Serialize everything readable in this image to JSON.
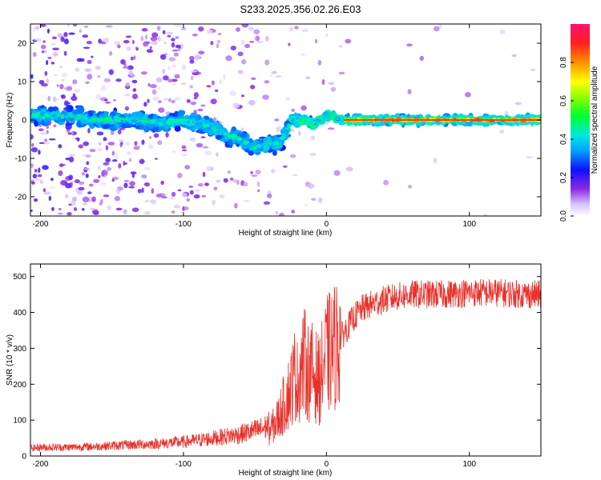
{
  "title": "S233.2025.356.02.26.E03",
  "colors": {
    "snr_line": "#e8312a",
    "spectrum_colormap": [
      "#ffffff",
      "#b080ff",
      "#6a00e0",
      "#2020ff",
      "#00e0ff",
      "#00ff40",
      "#c0ff00",
      "#ff8000",
      "#ff1060"
    ]
  },
  "chart_data": [
    {
      "type": "heatmap",
      "xlabel": "Height of straight line (km)",
      "ylabel": "Frequency (Hz)",
      "xlim": [
        -207,
        150
      ],
      "ylim": [
        -25,
        25
      ],
      "xticks": [
        -200,
        -100,
        0,
        100
      ],
      "xtick_labels": [
        "-200",
        "-100",
        "0",
        "100"
      ],
      "yticks": [
        20,
        10,
        0,
        -10,
        -20
      ],
      "ytick_labels": [
        "20",
        "10",
        "0",
        "-10",
        "-20"
      ],
      "colorbar": {
        "label": "Normalized spectral amplitude",
        "range": [
          0,
          1
        ],
        "ticks": [
          0.0,
          0.2,
          0.4,
          0.6,
          0.8
        ],
        "tick_labels": [
          "0.0",
          "0.2",
          "0.4",
          "0.6",
          "0.8"
        ]
      },
      "ridge": {
        "x": [
          -207,
          -190,
          -175,
          -160,
          -145,
          -130,
          -115,
          -100,
          -90,
          -80,
          -70,
          -60,
          -50,
          -40,
          -33,
          -28,
          -25,
          -20,
          -15,
          -10,
          -5,
          0,
          5,
          10,
          15,
          150
        ],
        "y": [
          1.5,
          1,
          1,
          0,
          0,
          0,
          -1,
          0,
          -1,
          -2,
          -4,
          -5,
          -7,
          -6,
          -6,
          -3,
          0,
          0,
          0,
          -1,
          0,
          1,
          1,
          0,
          0,
          0
        ]
      }
    },
    {
      "type": "line",
      "xlabel": "Height of straight line (km)",
      "ylabel": "SNR (10 * v/v)",
      "xlim": [
        -207,
        150
      ],
      "ylim": [
        0,
        535
      ],
      "xticks": [
        -200,
        -100,
        0,
        100
      ],
      "xtick_labels": [
        "-200",
        "-100",
        "0",
        "100"
      ],
      "yticks": [
        0,
        100,
        200,
        300,
        400,
        500
      ],
      "ytick_labels": [
        "0",
        "100",
        "200",
        "300",
        "400",
        "500"
      ],
      "series": [
        {
          "x": [
            -207,
            -200,
            -180,
            -160,
            -140,
            -120,
            -100,
            -90,
            -80,
            -70,
            -60,
            -50,
            -45,
            -40,
            -35,
            -30,
            -25,
            -22,
            -20,
            -18,
            -15,
            -12,
            -10,
            -5,
            0,
            5,
            10,
            15,
            20,
            25,
            30,
            40,
            50,
            60,
            80,
            100,
            120,
            140,
            150
          ],
          "y": [
            18,
            20,
            20,
            22,
            25,
            28,
            32,
            36,
            40,
            45,
            50,
            58,
            62,
            70,
            95,
            140,
            190,
            230,
            200,
            250,
            260,
            230,
            235,
            210,
            280,
            300,
            330,
            360,
            390,
            410,
            420,
            435,
            445,
            450,
            450,
            455,
            455,
            450,
            450
          ]
        }
      ]
    }
  ]
}
